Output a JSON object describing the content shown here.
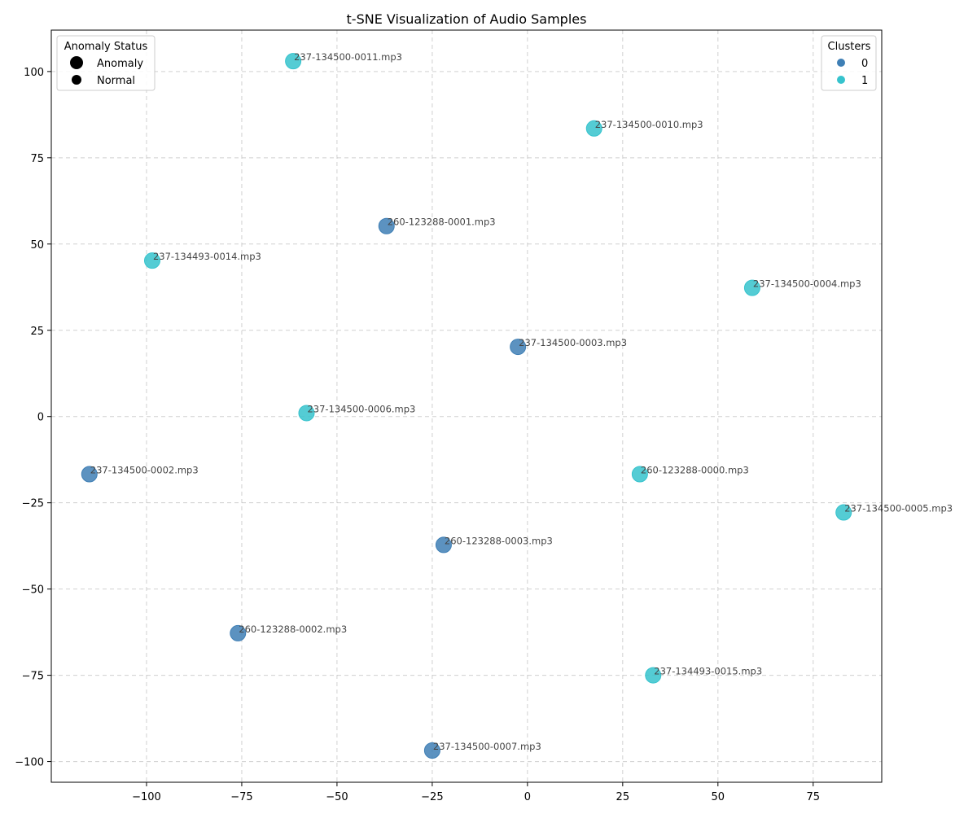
{
  "chart_data": {
    "type": "scatter",
    "title": "t-SNE Visualization of Audio Samples",
    "xlabel": "",
    "ylabel": "",
    "xlim": [
      -125,
      93
    ],
    "ylim": [
      -106,
      112
    ],
    "xticks": [
      -100,
      -75,
      -50,
      -25,
      0,
      25,
      50,
      75
    ],
    "yticks": [
      -100,
      -75,
      -50,
      -25,
      0,
      25,
      50,
      75,
      100
    ],
    "grid": true,
    "colors": {
      "cluster_0": "#3f7fb5",
      "cluster_1": "#36c3cd"
    },
    "points": [
      {
        "label": "237-134500-0011.mp3",
        "x": -61.5,
        "y": 103,
        "cluster": 1
      },
      {
        "label": "237-134500-0010.mp3",
        "x": 17.5,
        "y": 83.5,
        "cluster": 1
      },
      {
        "label": "260-123288-0001.mp3",
        "x": -37,
        "y": 55.2,
        "cluster": 0
      },
      {
        "label": "237-134493-0014.mp3",
        "x": -98.5,
        "y": 45.2,
        "cluster": 1
      },
      {
        "label": "237-134500-0004.mp3",
        "x": 59,
        "y": 37.3,
        "cluster": 1
      },
      {
        "label": "237-134500-0003.mp3",
        "x": -2.5,
        "y": 20.2,
        "cluster": 0
      },
      {
        "label": "237-134500-0006.mp3",
        "x": -58,
        "y": 1,
        "cluster": 1
      },
      {
        "label": "237-134500-0002.mp3",
        "x": -115,
        "y": -16.7,
        "cluster": 0
      },
      {
        "label": "260-123288-0000.mp3",
        "x": 29.5,
        "y": -16.7,
        "cluster": 1
      },
      {
        "label": "237-134500-0005.mp3",
        "x": 83,
        "y": -27.8,
        "cluster": 1
      },
      {
        "label": "260-123288-0003.mp3",
        "x": -22,
        "y": -37.2,
        "cluster": 0
      },
      {
        "label": "260-123288-0002.mp3",
        "x": -76,
        "y": -62.8,
        "cluster": 0
      },
      {
        "label": "237-134493-0015.mp3",
        "x": 33,
        "y": -75,
        "cluster": 1
      },
      {
        "label": "237-134500-0007.mp3",
        "x": -25,
        "y": -96.8,
        "cluster": 0
      }
    ],
    "legend_anomaly": {
      "title": "Anomaly Status",
      "placement": "upper-left",
      "entries": [
        "Anomaly",
        "Normal"
      ]
    },
    "legend_clusters": {
      "title": "Clusters",
      "placement": "upper-right",
      "entries": [
        "0",
        "1"
      ]
    }
  }
}
